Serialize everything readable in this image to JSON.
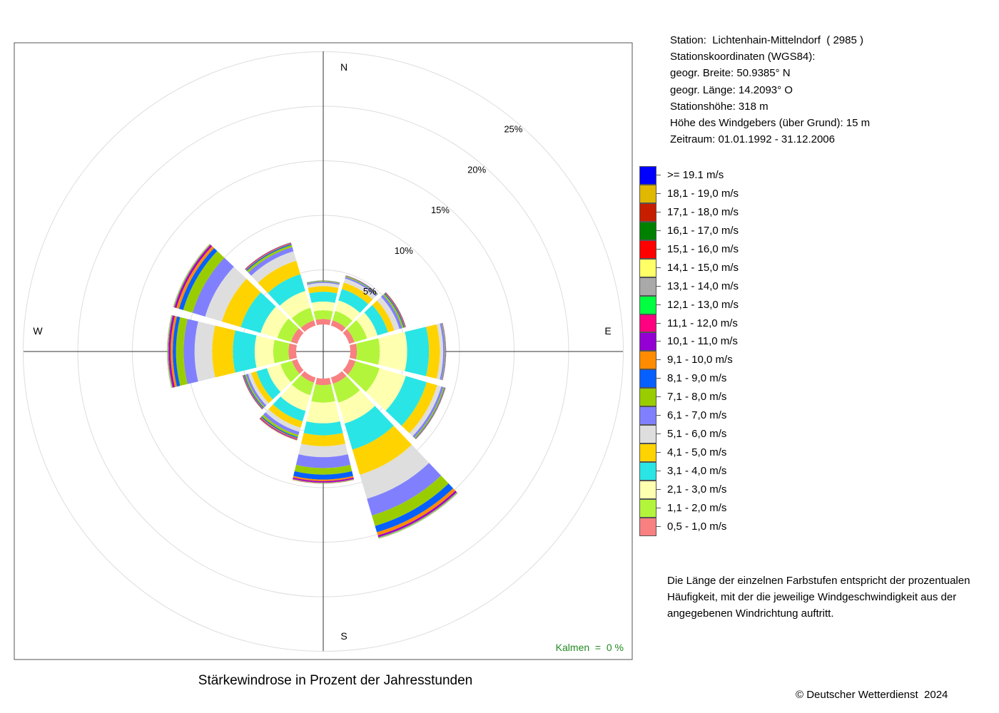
{
  "chart_data": {
    "type": "wind-rose",
    "title": "Stärkewindrose in Prozent der Jahresstunden",
    "directions_label": [
      "N",
      "E",
      "S",
      "W"
    ],
    "ring_labels": [
      "5%",
      "10%",
      "15%",
      "20%",
      "25%"
    ],
    "calm_label": "Kalmen  =  0 %",
    "sectors_deg": [
      0,
      30,
      60,
      90,
      120,
      150,
      180,
      210,
      240,
      270,
      300,
      330
    ],
    "speed_classes": [
      "0,5 - 1,0 m/s",
      "1,1 - 2,0 m/s",
      "2,1 - 3,0 m/s",
      "3,1 - 4,0 m/s",
      "4,1 - 5,0 m/s",
      "5,1 - 6,0 m/s",
      "6,1 - 7,0 m/s",
      "7,1 - 8,0 m/s",
      "8,1 - 9,0 m/s",
      "9,1 - 10,0 m/s",
      "10,1 - 11,0 m/s",
      "11,1 - 12,0 m/s",
      "12,1 - 13,0 m/s",
      "13,1 - 14,0 m/s",
      "14,1 - 15,0 m/s",
      "15,1 - 16,0 m/s",
      "16,1 - 17,0 m/s",
      "17,1 - 18,0 m/s",
      "18,1 - 19,0 m/s",
      ">= 19.1 m/s"
    ],
    "class_colors": [
      "#f88080",
      "#b3f53b",
      "#ffffb0",
      "#2ae5e5",
      "#ffd300",
      "#dedede",
      "#8080ff",
      "#9acd00",
      "#0560ff",
      "#ff8c00",
      "#9400d3",
      "#ff0080",
      "#00ff40",
      "#a9a9a9",
      "#ffff66",
      "#ff0000",
      "#008000",
      "#c81e00",
      "#e0b800",
      "#0000ff"
    ],
    "percent_by_sector": [
      {
        "deg": 0,
        "values": [
          0.5,
          0.8,
          0.8,
          0.9,
          0.5,
          0.3,
          0.1,
          0.05,
          0.03,
          0.02,
          0.01,
          0.01,
          0.01,
          0,
          0,
          0,
          0,
          0,
          0,
          0
        ]
      },
      {
        "deg": 30,
        "values": [
          0.5,
          0.9,
          1.0,
          1.1,
          0.6,
          0.4,
          0.15,
          0.08,
          0.04,
          0.02,
          0.01,
          0.01,
          0,
          0,
          0,
          0,
          0,
          0,
          0,
          0
        ]
      },
      {
        "deg": 60,
        "values": [
          0.5,
          1.2,
          1.0,
          1.0,
          0.6,
          0.5,
          0.25,
          0.15,
          0.08,
          0.05,
          0.04,
          0.03,
          0.02,
          0.01,
          0.01,
          0,
          0,
          0,
          0,
          0
        ]
      },
      {
        "deg": 90,
        "values": [
          0.6,
          2.1,
          2.5,
          2.0,
          1.0,
          0.3,
          0.15,
          0.05,
          0.03,
          0.02,
          0.01,
          0.01,
          0,
          0,
          0,
          0,
          0,
          0,
          0,
          0
        ]
      },
      {
        "deg": 120,
        "values": [
          0.6,
          2.3,
          2.5,
          2.0,
          1.0,
          0.4,
          0.2,
          0.1,
          0.05,
          0.03,
          0.02,
          0.01,
          0.01,
          0,
          0,
          0,
          0,
          0,
          0,
          0
        ]
      },
      {
        "deg": 150,
        "values": [
          0.6,
          1.8,
          2.0,
          2.5,
          2.4,
          2.3,
          1.6,
          1.0,
          0.6,
          0.3,
          0.15,
          0.05,
          0.05,
          0.03,
          0.02,
          0.01,
          0.01,
          0,
          0,
          0
        ]
      },
      {
        "deg": 180,
        "values": [
          0.6,
          1.6,
          1.9,
          1.1,
          1.0,
          1.0,
          1.0,
          0.6,
          0.45,
          0.15,
          0.1,
          0.05,
          0.03,
          0.02,
          0.01,
          0.01,
          0,
          0,
          0,
          0
        ]
      },
      {
        "deg": 210,
        "values": [
          0.5,
          1.2,
          1.5,
          1.0,
          0.6,
          0.4,
          0.3,
          0.2,
          0.1,
          0.08,
          0.06,
          0.04,
          0.02,
          0.02,
          0.01,
          0.01,
          0,
          0,
          0,
          0
        ]
      },
      {
        "deg": 240,
        "values": [
          0.5,
          1.1,
          1.3,
          1.0,
          0.5,
          0.3,
          0.2,
          0.12,
          0.08,
          0.05,
          0.04,
          0.03,
          0.02,
          0.01,
          0.01,
          0,
          0,
          0,
          0,
          0
        ]
      },
      {
        "deg": 270,
        "values": [
          0.7,
          1.4,
          1.7,
          2.0,
          1.9,
          1.6,
          1.0,
          0.7,
          0.3,
          0.2,
          0.15,
          0.06,
          0.05,
          0.02,
          0.02,
          0.01,
          0.01,
          0,
          0,
          0
        ]
      },
      {
        "deg": 300,
        "values": [
          0.6,
          1.3,
          1.6,
          1.9,
          1.8,
          1.6,
          1.2,
          0.9,
          0.4,
          0.25,
          0.15,
          0.06,
          0.05,
          0.02,
          0.02,
          0.01,
          0.01,
          0,
          0,
          0
        ]
      },
      {
        "deg": 330,
        "values": [
          0.5,
          1.2,
          1.6,
          1.6,
          1.3,
          0.9,
          0.4,
          0.2,
          0.1,
          0.06,
          0.04,
          0.03,
          0.02,
          0.01,
          0.01,
          0,
          0,
          0,
          0,
          0
        ]
      }
    ],
    "rmax_percent": 25
  },
  "station": {
    "line1": "Station:  Lichtenhain-Mittelndorf  ( 2985 )",
    "line2": "Stationskoordinaten (WGS84):",
    "line3": "geogr. Breite: 50.9385° N",
    "line4": "geogr. Länge: 14.2093° O",
    "line5": "Stationshöhe: 318 m",
    "line6": "Höhe des Windgebers (über Grund): 15 m",
    "line7": "Zeitraum: 01.01.1992 - 31.12.2006"
  },
  "legend": [
    {
      "label": ">= 19.1 m/s",
      "color": "#0000ff"
    },
    {
      "label": "18,1 - 19,0 m/s",
      "color": "#e0b800"
    },
    {
      "label": "17,1 - 18,0 m/s",
      "color": "#c81e00"
    },
    {
      "label": "16,1 - 17,0 m/s",
      "color": "#008000"
    },
    {
      "label": "15,1 - 16,0 m/s",
      "color": "#ff0000"
    },
    {
      "label": "14,1 - 15,0 m/s",
      "color": "#ffff66"
    },
    {
      "label": "13,1 - 14,0 m/s",
      "color": "#a9a9a9"
    },
    {
      "label": "12,1 - 13,0 m/s",
      "color": "#00ff40"
    },
    {
      "label": "11,1 - 12,0 m/s",
      "color": "#ff0080"
    },
    {
      "label": "10,1 - 11,0 m/s",
      "color": "#9400d3"
    },
    {
      "label": "9,1 - 10,0 m/s",
      "color": "#ff8c00"
    },
    {
      "label": "8,1 - 9,0 m/s",
      "color": "#0560ff"
    },
    {
      "label": "7,1 - 8,0 m/s",
      "color": "#9acd00"
    },
    {
      "label": "6,1 - 7,0 m/s",
      "color": "#8080ff"
    },
    {
      "label": "5,1 - 6,0 m/s",
      "color": "#dedede"
    },
    {
      "label": "4,1 - 5,0 m/s",
      "color": "#ffd300"
    },
    {
      "label": "3,1 - 4,0 m/s",
      "color": "#2ae5e5"
    },
    {
      "label": "2,1 - 3,0 m/s",
      "color": "#ffffb0"
    },
    {
      "label": "1,1 - 2,0 m/s",
      "color": "#b3f53b"
    },
    {
      "label": "0,5 - 1,0 m/s",
      "color": "#f88080"
    }
  ],
  "note": "Die Länge der einzelnen Farbstufen entspricht der prozentualen Häufigkeit, mit der die jeweilige Windgeschwindigkeit aus der angegebenen Windrichtung auftritt.",
  "copyright": "© Deutscher Wetterdienst  2024"
}
